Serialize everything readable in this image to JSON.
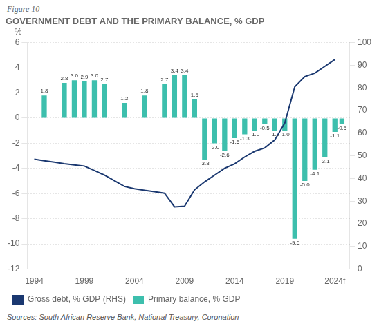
{
  "chart_data": {
    "type": "bar",
    "title": "GOVERNMENT DEBT AND THE PRIMARY BALANCE, % GDP",
    "annotations": [
      "Figure 10",
      "Sources: South African Reserve Bank, National Treasury, Coronation"
    ],
    "ylabel": "%",
    "series": [
      {
        "name": "Primary balance, % GDP",
        "type": "bar",
        "color": "#3dbfad",
        "data_labels": true,
        "x": [
          1995,
          1997,
          1998,
          1999,
          2000,
          2001,
          2003,
          2005,
          2007,
          2008,
          2009,
          2010,
          2011,
          2012,
          2013,
          2014,
          2015,
          2016,
          2017,
          2018,
          2019,
          2020,
          2021,
          2022,
          2023,
          2024,
          2024.7
        ],
        "values": [
          1.8,
          2.8,
          3.0,
          2.9,
          3.0,
          2.7,
          1.2,
          1.8,
          2.7,
          3.4,
          3.4,
          1.5,
          -3.3,
          -2.0,
          -2.6,
          -1.6,
          -1.3,
          -1.0,
          -0.5,
          -1.0,
          -1.0,
          -9.6,
          -5.0,
          -4.1,
          -3.1,
          -1.1,
          -0.5
        ],
        "value_labels": [
          "1.8",
          "2.8",
          "3.0",
          "2.9",
          "3.0",
          "2.7",
          "1.2",
          "1.8",
          "2.7",
          "3.4",
          "3.4",
          "1.5",
          "-3.3",
          "-2.0",
          "-2.6",
          "-1.6",
          "-1.3",
          "-1.0",
          "-0.5",
          "-1.0",
          "-1.0",
          "-9.6",
          "-5.0",
          "-4.1",
          "-3.1",
          "-1.1",
          "-0.5"
        ]
      },
      {
        "name": "Gross debt, % GDP (RHS)",
        "type": "line",
        "color": "#1a3870",
        "axis": "y2",
        "x": [
          1994,
          1995,
          1996,
          1997,
          1998,
          1999,
          2000,
          2001,
          2002,
          2003,
          2004,
          2005,
          2006,
          2007,
          2008,
          2009,
          2010,
          2011,
          2012,
          2013,
          2014,
          2015,
          2016,
          2017,
          2018,
          2019,
          2020,
          2021,
          2022,
          2023,
          2024
        ],
        "values": [
          48.5,
          47.8,
          47.2,
          46.5,
          46.0,
          45.5,
          43.5,
          41.5,
          39.0,
          36.5,
          35.5,
          34.8,
          34.2,
          33.5,
          27.5,
          27.8,
          35.0,
          38.5,
          41.5,
          44.5,
          46.5,
          49.5,
          52.0,
          53.5,
          57.0,
          64.5,
          80.5,
          85.0,
          86.5,
          89.5,
          92.5
        ]
      }
    ],
    "xlim": [
      1993.3,
      2025.5
    ],
    "xticks": [
      1994,
      1999,
      2004,
      2009,
      2014,
      2019,
      {
        "value": 2024,
        "label": "2024f"
      }
    ],
    "ylim": [
      -12,
      6
    ],
    "yticks": [
      -12,
      -10,
      -8,
      -6,
      -4,
      -2,
      0,
      2,
      4,
      6
    ],
    "y2lim": [
      0,
      100
    ],
    "y2ticks": [
      0,
      10,
      20,
      30,
      40,
      50,
      60,
      70,
      80,
      90,
      100
    ],
    "grid": true,
    "legend": "lower left"
  }
}
